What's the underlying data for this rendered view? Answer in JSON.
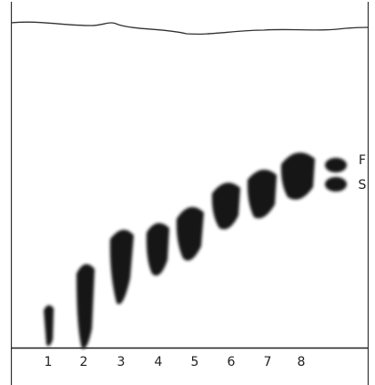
{
  "lanes": [
    "1",
    "2",
    "3",
    "4",
    "5",
    "6",
    "7",
    "8"
  ],
  "references": [
    "F",
    "S"
  ]
}
